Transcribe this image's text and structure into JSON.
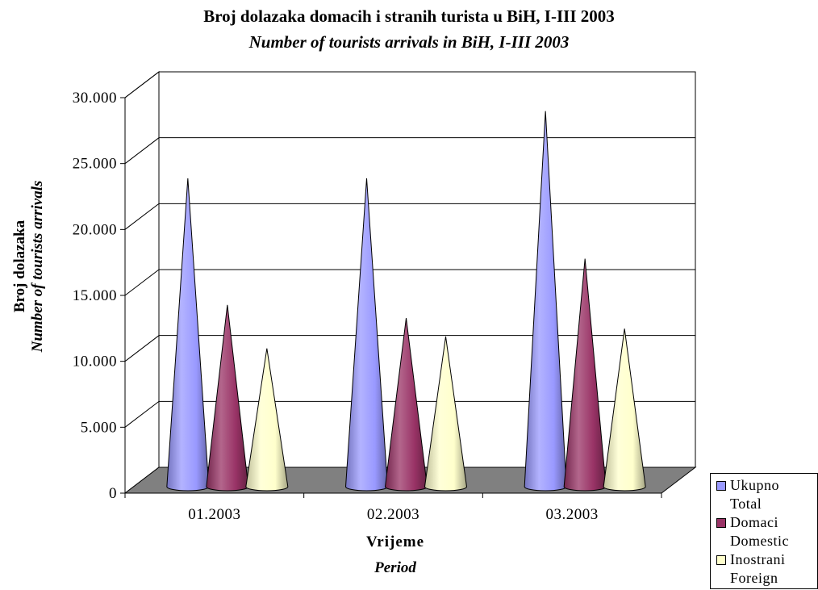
{
  "chart_data": {
    "type": "bar",
    "style": "3d-cone",
    "title": "Broj dolazaka domacih i stranih turista u BiH, I-III 2003",
    "subtitle": "Number of tourists arrivals in BiH, I-III 2003",
    "xlabel": "Vrijeme",
    "xlabel_sub": "Period",
    "ylabel": "Broj dolazaka",
    "ylabel_sub": "Number of tourists arrivals",
    "categories": [
      "01.2003",
      "02.2003",
      "03.2003"
    ],
    "yticks": [
      "0",
      "5.000",
      "10.000",
      "15.000",
      "20.000",
      "25.000",
      "30.000"
    ],
    "ylim": [
      0,
      30000
    ],
    "grid": true,
    "legend_position": "bottom-right",
    "series": [
      {
        "name": "Ukupno",
        "name_sub": "Total",
        "color": "#9999ff",
        "values": [
          22900,
          22900,
          28000
        ]
      },
      {
        "name": "Domaci",
        "name_sub": "Domestic",
        "color": "#993366",
        "values": [
          13300,
          12300,
          16800
        ]
      },
      {
        "name": "Inostrani",
        "name_sub": "Foreign",
        "color": "#ffffcc",
        "values": [
          10000,
          10900,
          11500
        ]
      }
    ]
  }
}
